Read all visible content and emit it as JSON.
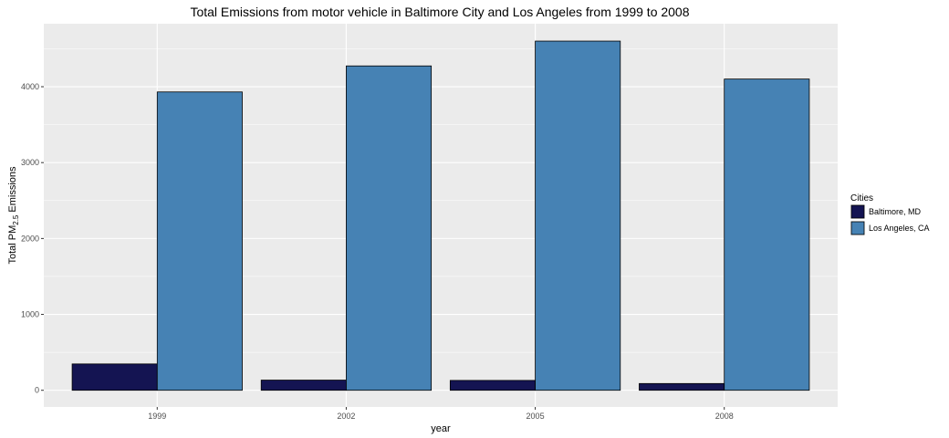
{
  "chart_data": {
    "type": "bar",
    "title": "Total Emissions from motor vehicle in Baltimore City and Los Angeles from 1999 to 2008",
    "xlabel": "year",
    "ylabel": {
      "prefix": "Total PM",
      "subscript": "2.5",
      "suffix": " Emissions"
    },
    "categories": [
      "1999",
      "2002",
      "2005",
      "2008"
    ],
    "series": [
      {
        "name": "Baltimore, MD",
        "color": "#141452",
        "values": [
          347,
          134,
          130,
          89
        ]
      },
      {
        "name": "Los Angeles, CA",
        "color": "#4682b4",
        "values": [
          3931,
          4274,
          4601,
          4101
        ]
      }
    ],
    "yticks": [
      0,
      1000,
      2000,
      3000,
      4000
    ],
    "ylim": [
      -220,
      4830
    ],
    "grid": true,
    "legend": {
      "title": "Cities",
      "position": "right"
    },
    "colors": {
      "panel": "#ebebeb",
      "grid": "#ffffff",
      "bar_outline": "#000000"
    }
  }
}
